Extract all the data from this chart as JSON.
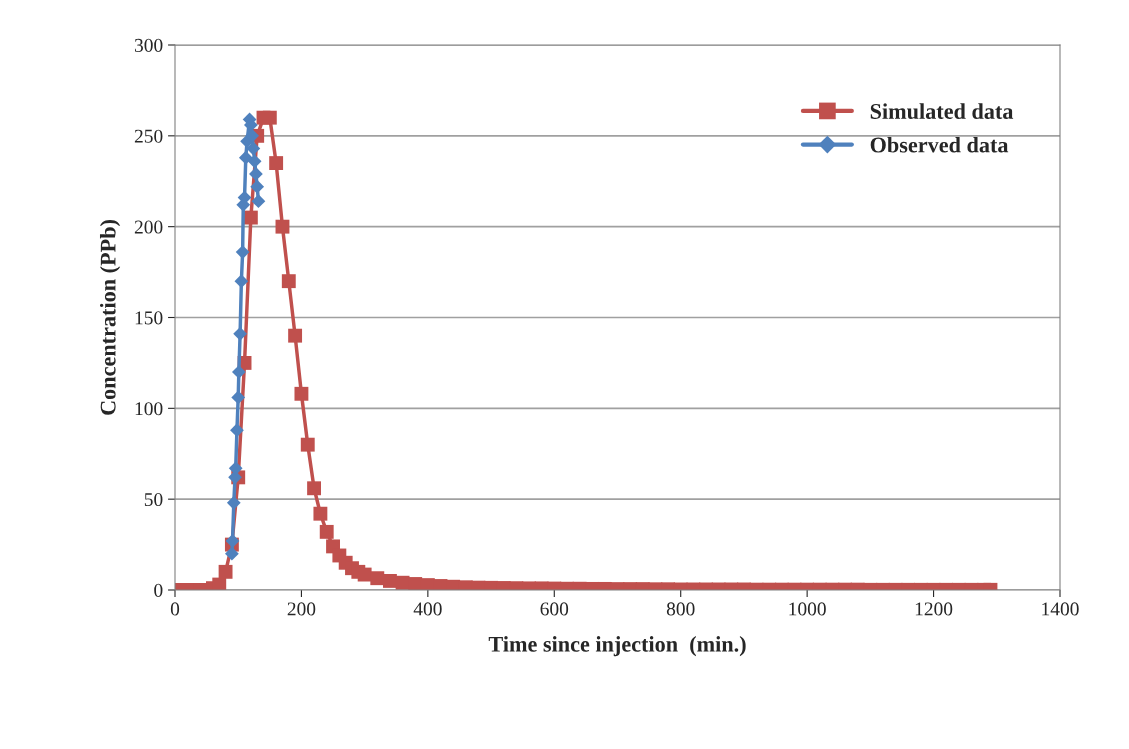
{
  "chart_data": {
    "type": "line",
    "xlabel": "Time since injection  (min.)",
    "ylabel": "Concentration (PPb)",
    "xlim": [
      0,
      1400
    ],
    "xticks": [
      0,
      200,
      400,
      600,
      800,
      1000,
      1200,
      1400
    ],
    "ylim": [
      0,
      300
    ],
    "yticks": [
      0,
      50,
      100,
      150,
      200,
      250,
      300
    ],
    "grid": "y",
    "legend": "top right",
    "series": [
      {
        "name": "Simulated data",
        "color": "#c0504d",
        "marker": "square",
        "x": [
          0,
          10,
          20,
          30,
          40,
          50,
          60,
          70,
          80,
          90,
          100,
          110,
          120,
          130,
          140,
          150,
          160,
          170,
          180,
          190,
          200,
          210,
          220,
          230,
          240,
          250,
          260,
          270,
          280,
          290,
          300,
          320,
          340,
          360,
          380,
          400,
          420,
          440,
          460,
          480,
          500,
          520,
          540,
          560,
          580,
          600,
          620,
          640,
          660,
          680,
          700,
          720,
          740,
          760,
          780,
          800,
          820,
          840,
          860,
          880,
          900,
          920,
          940,
          960,
          980,
          1000,
          1020,
          1040,
          1060,
          1080,
          1100,
          1120,
          1140,
          1160,
          1180,
          1200,
          1220,
          1240,
          1260,
          1280,
          1290
        ],
        "values": [
          0,
          0,
          0,
          0,
          0,
          0,
          1,
          3,
          10,
          25,
          62,
          125,
          205,
          250,
          260,
          260,
          235,
          200,
          170,
          140,
          108,
          80,
          56,
          42,
          32,
          24,
          19,
          15,
          12,
          10,
          8.5,
          6.5,
          5,
          4,
          3.3,
          2.7,
          2.2,
          1.8,
          1.5,
          1.3,
          1.2,
          1.1,
          1,
          0.9,
          0.9,
          0.8,
          0.7,
          0.7,
          0.6,
          0.6,
          0.5,
          0.5,
          0.5,
          0.4,
          0.4,
          0.3,
          0.3,
          0.3,
          0.3,
          0.3,
          0.3,
          0.2,
          0.2,
          0.2,
          0.2,
          0.2,
          0.2,
          0.2,
          0.2,
          0.2,
          0.1,
          0.1,
          0.1,
          0.1,
          0.1,
          0.1,
          0.1,
          0.1,
          0.1,
          0.1,
          0.1
        ]
      },
      {
        "name": "Observed data",
        "color": "#4f81bd",
        "marker": "diamond",
        "x": [
          90,
          91,
          93,
          95,
          96,
          98,
          100,
          101,
          103,
          105,
          107,
          108,
          110,
          112,
          114,
          118,
          120,
          122,
          124,
          126,
          128,
          130,
          132
        ],
        "values": [
          20,
          27,
          48,
          62,
          67,
          88,
          106,
          120,
          141,
          170,
          186,
          212,
          216,
          238,
          247,
          259,
          256,
          250,
          243,
          236,
          229,
          222,
          214
        ]
      }
    ]
  }
}
